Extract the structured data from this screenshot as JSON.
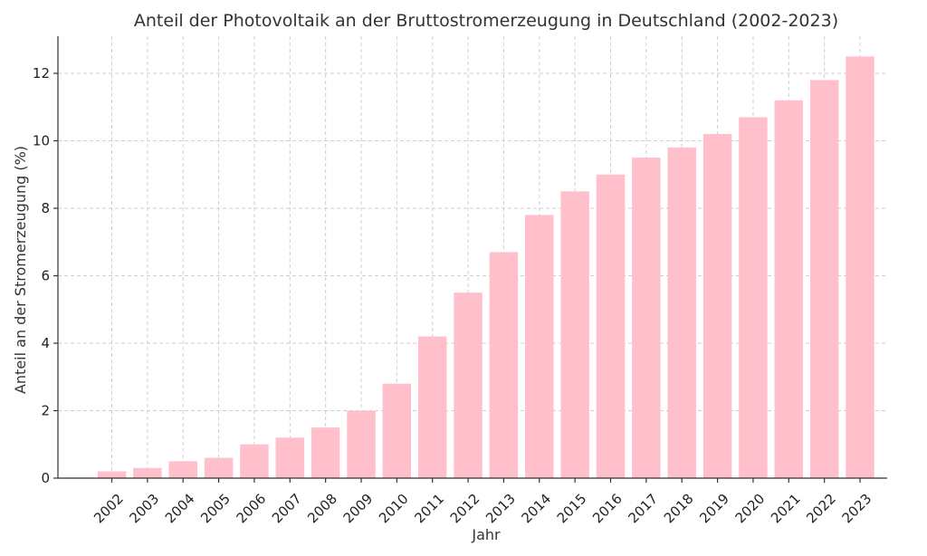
{
  "chart_data": {
    "type": "bar",
    "title": "Anteil der Photovoltaik an der Bruttostromerzeugung in Deutschland (2002-2023)",
    "xlabel": "Jahr",
    "ylabel": "Anteil an der Stromerzeugung (%)",
    "categories": [
      "2002",
      "2003",
      "2004",
      "2005",
      "2006",
      "2007",
      "2008",
      "2009",
      "2010",
      "2011",
      "2012",
      "2013",
      "2014",
      "2015",
      "2016",
      "2017",
      "2018",
      "2019",
      "2020",
      "2021",
      "2022",
      "2023"
    ],
    "values": [
      0.2,
      0.3,
      0.5,
      0.6,
      1.0,
      1.2,
      1.5,
      2.0,
      2.8,
      4.2,
      5.5,
      6.7,
      7.8,
      8.5,
      9.0,
      9.5,
      9.8,
      10.2,
      10.7,
      11.2,
      11.8,
      12.5
    ],
    "ylim": [
      0,
      13.1
    ],
    "yticks": [
      0,
      2,
      4,
      6,
      8,
      10,
      12
    ],
    "grid": true,
    "bar_color": "#ffc0cb"
  }
}
